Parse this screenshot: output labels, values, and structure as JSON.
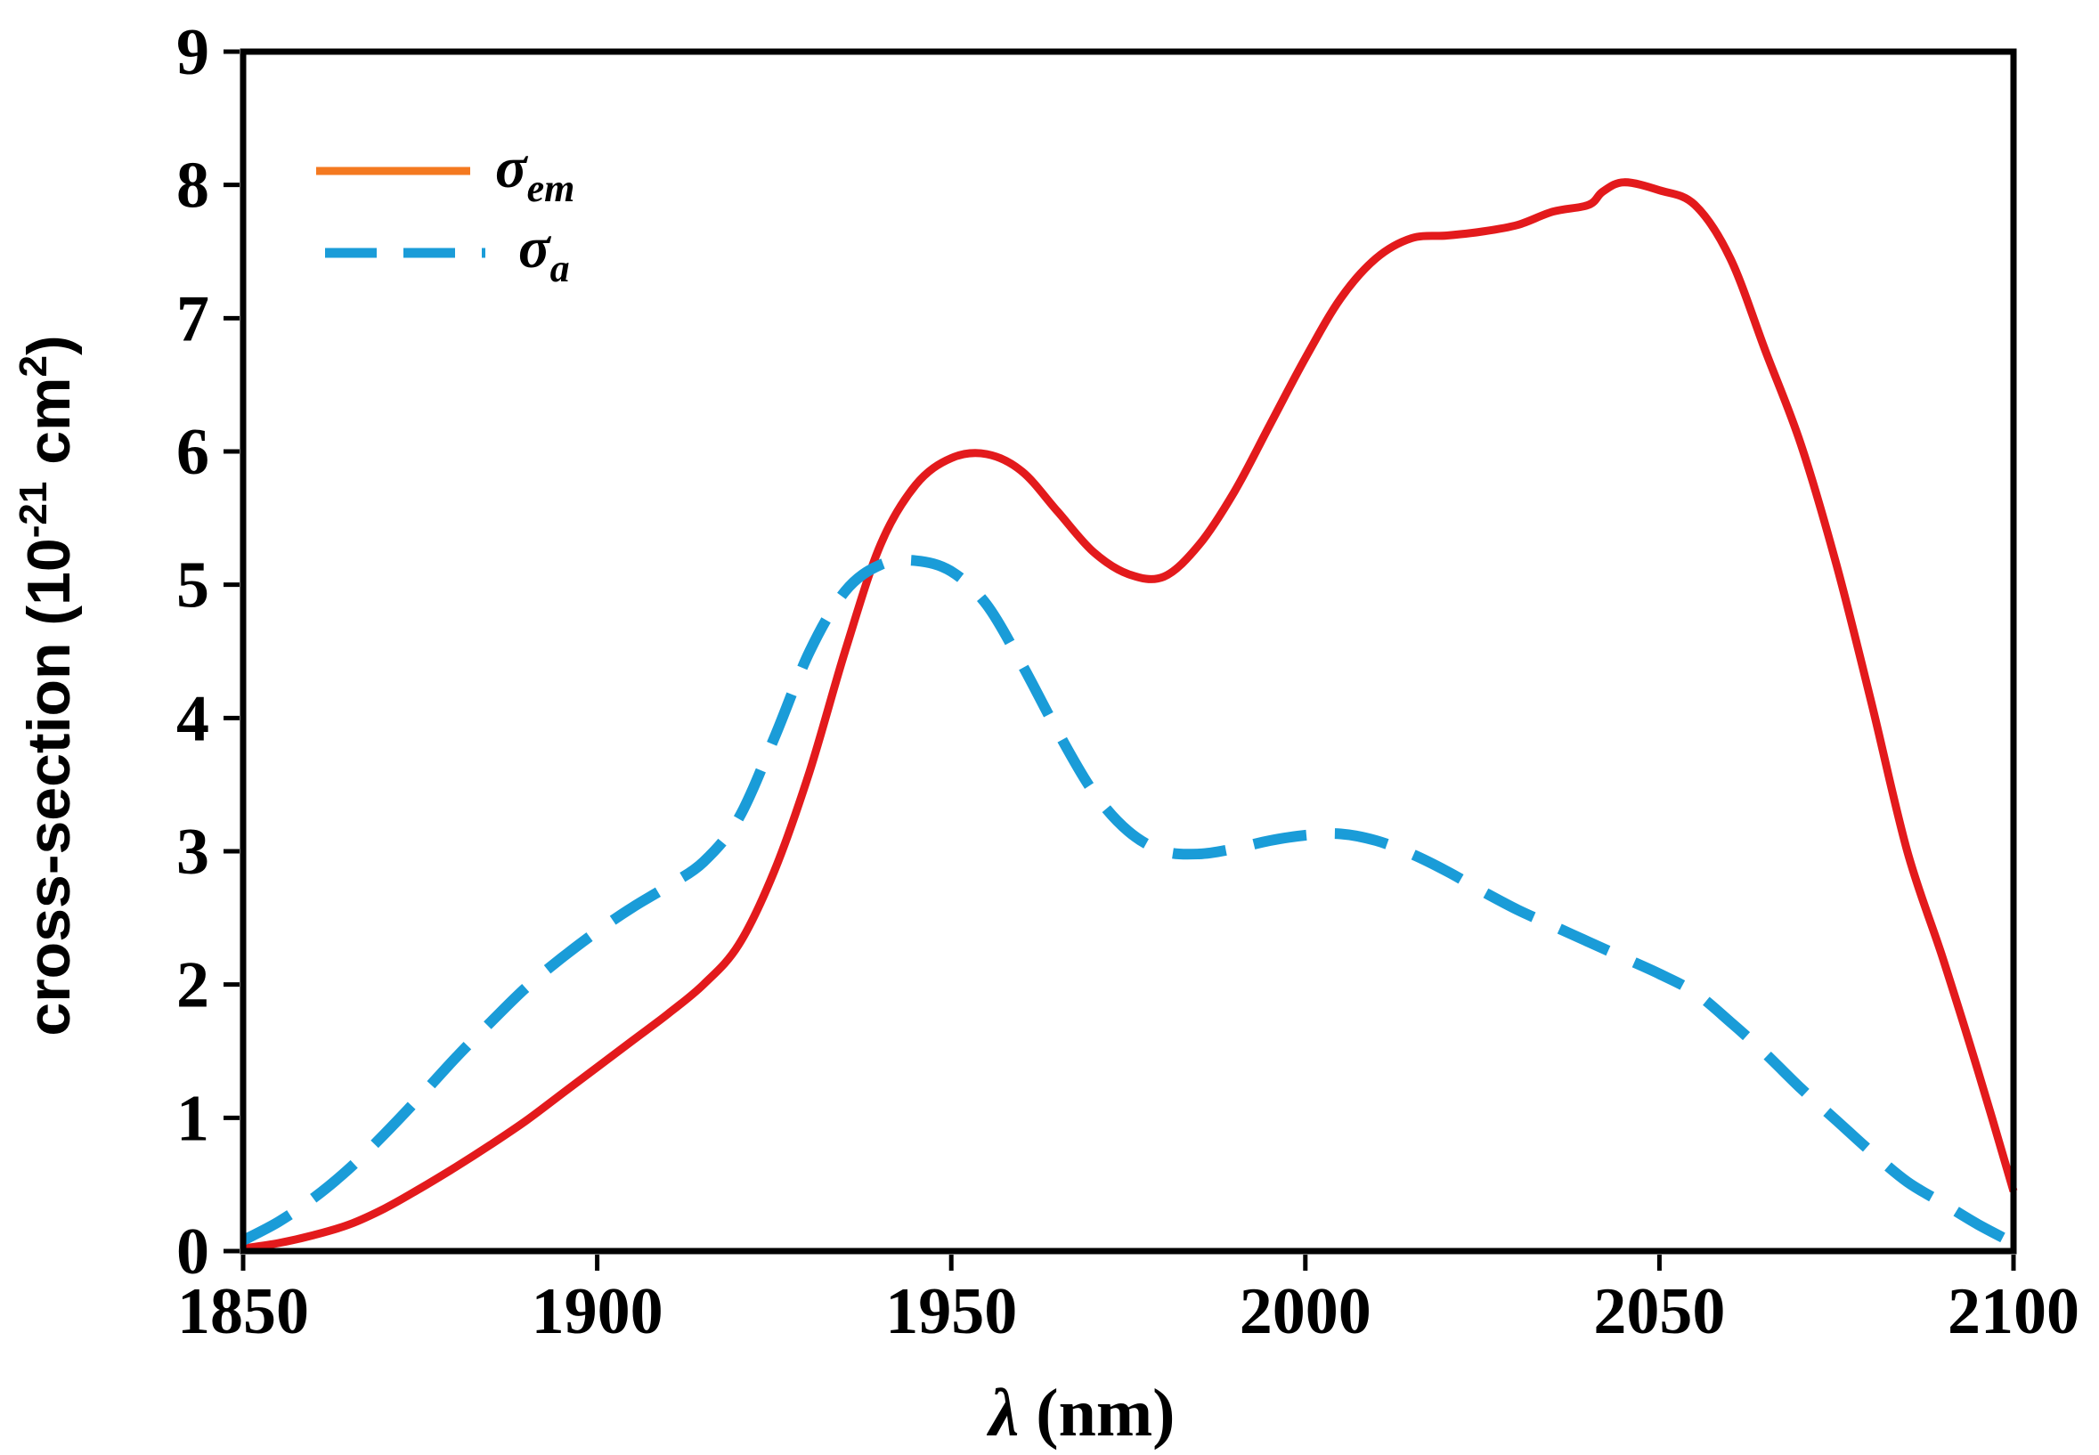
{
  "chart_data": {
    "type": "line",
    "title": "",
    "xlabel_symbol": "λ",
    "xlabel_unit": " (nm)",
    "ylabel_prefix": "cross-section  (10",
    "ylabel_exp": "-21",
    "ylabel_mid": " cm",
    "ylabel_exp2": "2",
    "ylabel_suffix": ")",
    "xlim": [
      1850,
      2100
    ],
    "ylim": [
      0,
      9
    ],
    "xticks": [
      "1850",
      "1900",
      "1950",
      "2000",
      "2050",
      "2100"
    ],
    "yticks": [
      "0",
      "1",
      "2",
      "3",
      "4",
      "5",
      "6",
      "7",
      "8",
      "9"
    ],
    "grid": false,
    "legend_position": "top-left",
    "series": [
      {
        "name": "σ_em",
        "legend_symbol": "σ",
        "legend_sub": "em",
        "line_color": "#e31a1c",
        "legend_color": "#f47920",
        "style": "solid",
        "x": [
          1850,
          1855,
          1860,
          1865,
          1870,
          1875,
          1880,
          1885,
          1890,
          1895,
          1900,
          1905,
          1910,
          1915,
          1920,
          1925,
          1930,
          1935,
          1940,
          1945,
          1950,
          1955,
          1960,
          1965,
          1970,
          1975,
          1980,
          1985,
          1990,
          1995,
          2000,
          2005,
          2010,
          2015,
          2020,
          2025,
          2030,
          2035,
          2040,
          2042,
          2045,
          2050,
          2055,
          2060,
          2065,
          2070,
          2075,
          2080,
          2085,
          2090,
          2095,
          2100
        ],
        "y": [
          0.02,
          0.06,
          0.12,
          0.2,
          0.32,
          0.47,
          0.63,
          0.8,
          0.98,
          1.18,
          1.38,
          1.58,
          1.78,
          2.0,
          2.3,
          2.85,
          3.6,
          4.5,
          5.3,
          5.75,
          5.95,
          5.98,
          5.85,
          5.55,
          5.25,
          5.08,
          5.06,
          5.3,
          5.7,
          6.2,
          6.7,
          7.15,
          7.45,
          7.6,
          7.62,
          7.65,
          7.7,
          7.8,
          7.85,
          7.95,
          8.02,
          7.96,
          7.85,
          7.45,
          6.75,
          6.05,
          5.15,
          4.1,
          3.0,
          2.2,
          1.35,
          0.45
        ]
      },
      {
        "name": "σ_a",
        "legend_symbol": "σ",
        "legend_sub": "a",
        "line_color": "#1a9cd8",
        "legend_color": "#1a9cd8",
        "style": "dashed",
        "x": [
          1850,
          1855,
          1860,
          1865,
          1870,
          1875,
          1880,
          1885,
          1890,
          1895,
          1900,
          1905,
          1910,
          1915,
          1920,
          1925,
          1930,
          1935,
          1940,
          1945,
          1950,
          1955,
          1960,
          1965,
          1970,
          1975,
          1980,
          1985,
          1990,
          1995,
          2000,
          2005,
          2010,
          2015,
          2020,
          2025,
          2030,
          2035,
          2040,
          2045,
          2050,
          2055,
          2060,
          2065,
          2070,
          2075,
          2080,
          2085,
          2090,
          2095,
          2100
        ],
        "y": [
          0.08,
          0.22,
          0.4,
          0.62,
          0.88,
          1.16,
          1.45,
          1.72,
          1.98,
          2.2,
          2.4,
          2.58,
          2.74,
          2.92,
          3.25,
          3.85,
          4.5,
          4.95,
          5.15,
          5.18,
          5.1,
          4.85,
          4.4,
          3.9,
          3.45,
          3.15,
          3.0,
          2.98,
          3.02,
          3.08,
          3.12,
          3.13,
          3.08,
          2.98,
          2.85,
          2.7,
          2.56,
          2.44,
          2.32,
          2.2,
          2.08,
          1.94,
          1.72,
          1.48,
          1.22,
          0.98,
          0.74,
          0.52,
          0.36,
          0.2,
          0.06
        ]
      }
    ]
  }
}
